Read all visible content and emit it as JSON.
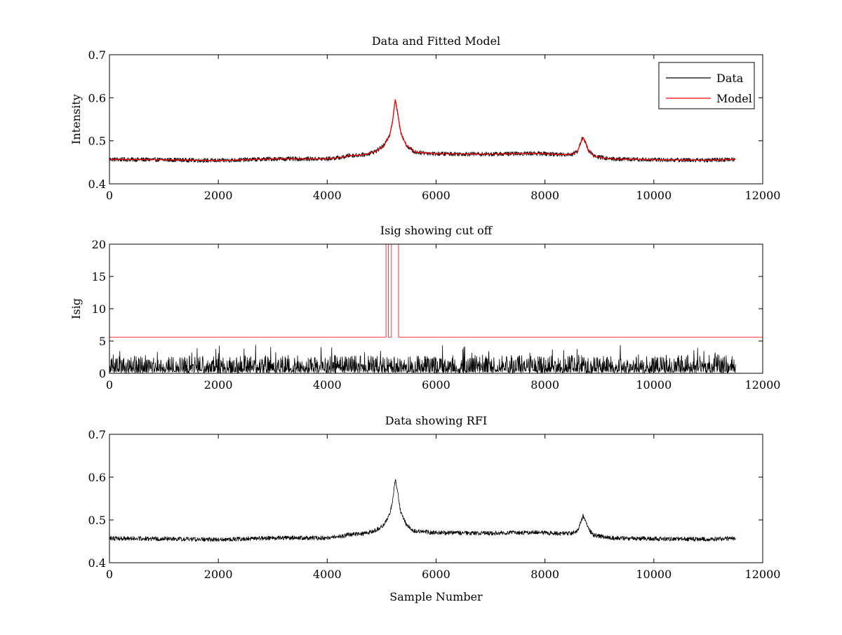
{
  "colors": {
    "data": "#000000",
    "model": "#ff0000",
    "axes": "#000000",
    "background": "#ffffff"
  },
  "chart_data": [
    {
      "type": "line",
      "title": "Data and Fitted Model",
      "xlabel": "",
      "ylabel": "Intensity",
      "xlim": [
        0,
        12000
      ],
      "ylim": [
        0.4,
        0.7
      ],
      "xticks": [
        0,
        2000,
        4000,
        6000,
        8000,
        10000,
        12000
      ],
      "yticks": [
        0.4,
        0.5,
        0.6,
        0.7
      ],
      "xtick_labels": [
        "0",
        "2000",
        "4000",
        "6000",
        "8000",
        "10000",
        "12000"
      ],
      "ytick_labels": [
        "0.4",
        "0.5",
        "0.6",
        "0.7"
      ],
      "grid": false,
      "legend": {
        "placement": "top-right",
        "entries": [
          "Data",
          "Model"
        ]
      },
      "series": [
        {
          "name": "Data",
          "color": "#000000",
          "kind": "noisy",
          "noise": 0.005,
          "x": [
            0,
            1000,
            2000,
            3000,
            4000,
            4300,
            4400,
            4500,
            4700,
            4900,
            5050,
            5150,
            5200,
            5250,
            5300,
            5350,
            5450,
            5600,
            6000,
            7000,
            7800,
            8000,
            8300,
            8500,
            8600,
            8650,
            8700,
            8750,
            8800,
            8900,
            9200,
            10000,
            11000,
            11500
          ],
          "y": [
            0.457,
            0.456,
            0.454,
            0.458,
            0.458,
            0.462,
            0.466,
            0.466,
            0.468,
            0.476,
            0.49,
            0.515,
            0.545,
            0.595,
            0.56,
            0.52,
            0.49,
            0.474,
            0.47,
            0.469,
            0.471,
            0.47,
            0.468,
            0.469,
            0.476,
            0.493,
            0.51,
            0.494,
            0.478,
            0.464,
            0.458,
            0.456,
            0.455,
            0.457
          ]
        },
        {
          "name": "Model",
          "color": "#ff0000",
          "kind": "smooth",
          "x": [
            0,
            1000,
            2000,
            3000,
            4000,
            4300,
            4400,
            4500,
            4700,
            4900,
            5050,
            5150,
            5200,
            5250,
            5300,
            5350,
            5450,
            5600,
            6000,
            7000,
            7800,
            8000,
            8300,
            8500,
            8600,
            8650,
            8700,
            8750,
            8800,
            8900,
            9200,
            10000,
            11000,
            11500
          ],
          "y": [
            0.457,
            0.456,
            0.454,
            0.458,
            0.458,
            0.462,
            0.466,
            0.466,
            0.468,
            0.476,
            0.49,
            0.515,
            0.545,
            0.597,
            0.56,
            0.52,
            0.49,
            0.474,
            0.47,
            0.469,
            0.471,
            0.47,
            0.468,
            0.469,
            0.476,
            0.493,
            0.508,
            0.494,
            0.478,
            0.464,
            0.458,
            0.456,
            0.455,
            0.457
          ]
        }
      ]
    },
    {
      "type": "line",
      "title": "Isig showing cut off",
      "xlabel": "",
      "ylabel": "Isig",
      "xlim": [
        0,
        12000
      ],
      "ylim": [
        0,
        20
      ],
      "xticks": [
        0,
        2000,
        4000,
        6000,
        8000,
        10000,
        12000
      ],
      "yticks": [
        0,
        5,
        10,
        15,
        20
      ],
      "xtick_labels": [
        "0",
        "2000",
        "4000",
        "6000",
        "8000",
        "10000",
        "12000"
      ],
      "ytick_labels": [
        "0",
        "5",
        "10",
        "15",
        "20"
      ],
      "grid": false,
      "series": [
        {
          "color": "#000000",
          "kind": "spiky",
          "x": [
            0,
            11500
          ],
          "y": [
            0,
            4.5
          ]
        },
        {
          "color": "#ff0000",
          "kind": "step",
          "x": [
            0,
            5080,
            5080,
            5125,
            5125,
            5180,
            5180,
            5310,
            5310,
            12000
          ],
          "y": [
            5.6,
            5.6,
            20,
            20,
            5.6,
            5.6,
            20,
            20,
            5.6,
            5.6
          ]
        }
      ]
    },
    {
      "type": "line",
      "title": "Data showing RFI",
      "xlabel": "Sample Number",
      "ylabel": "",
      "xlim": [
        0,
        12000
      ],
      "ylim": [
        0.4,
        0.7
      ],
      "xticks": [
        0,
        2000,
        4000,
        6000,
        8000,
        10000,
        12000
      ],
      "yticks": [
        0.4,
        0.5,
        0.6,
        0.7
      ],
      "xtick_labels": [
        "0",
        "2000",
        "4000",
        "6000",
        "8000",
        "10000",
        "12000"
      ],
      "ytick_labels": [
        "0.4",
        "0.5",
        "0.6",
        "0.7"
      ],
      "grid": false,
      "series": [
        {
          "color": "#000000",
          "kind": "noisy",
          "noise": 0.005,
          "x": [
            0,
            1000,
            2000,
            3000,
            4000,
            4300,
            4400,
            4500,
            4700,
            4900,
            5050,
            5150,
            5200,
            5250,
            5300,
            5350,
            5450,
            5600,
            6000,
            7000,
            7800,
            8000,
            8300,
            8500,
            8600,
            8650,
            8700,
            8750,
            8800,
            8900,
            9200,
            10000,
            11000,
            11500
          ],
          "y": [
            0.457,
            0.456,
            0.454,
            0.458,
            0.458,
            0.462,
            0.466,
            0.466,
            0.468,
            0.476,
            0.49,
            0.515,
            0.545,
            0.595,
            0.56,
            0.52,
            0.49,
            0.474,
            0.47,
            0.469,
            0.471,
            0.47,
            0.468,
            0.469,
            0.476,
            0.493,
            0.51,
            0.494,
            0.478,
            0.464,
            0.458,
            0.456,
            0.455,
            0.457
          ]
        }
      ]
    }
  ]
}
